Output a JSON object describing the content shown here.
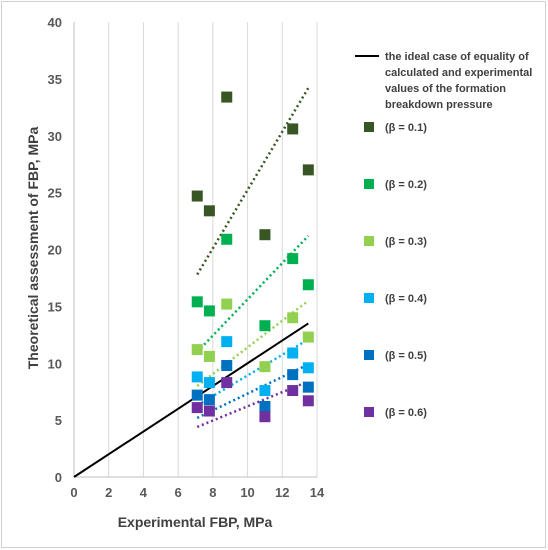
{
  "chart_data": {
    "type": "scatter",
    "title": "",
    "xlabel": "Experimental FBP, MPa",
    "ylabel": "Theoretical assessment of FBP, MPa",
    "xlim": [
      0,
      14
    ],
    "ylim": [
      0,
      40
    ],
    "xticks": [
      0,
      2,
      4,
      6,
      8,
      10,
      12,
      14
    ],
    "yticks": [
      0,
      5,
      10,
      15,
      20,
      25,
      30,
      35,
      40
    ],
    "grid": "vertical",
    "legend_position": "right",
    "ideal_line": {
      "name": "the ideal case of equality of calculated and experimental values of the formation breakdown pressure",
      "name_lines": [
        "the ideal case of equality of",
        "calculated and experimental",
        "values of the formation",
        "breakdown pressure"
      ],
      "points": [
        [
          0,
          0
        ],
        [
          13.5,
          13.5
        ]
      ],
      "color": "#000000"
    },
    "x": [
      7.1,
      7.8,
      8.8,
      11.0,
      12.6,
      13.5
    ],
    "series": [
      {
        "name": "(β = 0.1)",
        "color": "#375623",
        "values": [
          24.7,
          23.4,
          33.4,
          21.3,
          30.6,
          27.0
        ],
        "trend": [
          [
            7.1,
            17.8
          ],
          [
            13.5,
            34.2
          ]
        ]
      },
      {
        "name": "(β = 0.2)",
        "color": "#00B050",
        "values": [
          15.4,
          14.6,
          20.9,
          13.3,
          19.2,
          16.9
        ],
        "trend": [
          [
            7.1,
            11.0
          ],
          [
            13.5,
            21.2
          ]
        ]
      },
      {
        "name": "(β = 0.3)",
        "color": "#92D050",
        "values": [
          11.2,
          10.6,
          15.2,
          9.7,
          14.0,
          12.3
        ],
        "trend": [
          [
            7.1,
            8.0
          ],
          [
            13.5,
            15.5
          ]
        ]
      },
      {
        "name": "(β = 0.4)",
        "color": "#00B0F0",
        "values": [
          8.8,
          8.3,
          11.9,
          7.6,
          10.9,
          9.6
        ],
        "trend": [
          [
            7.1,
            6.3
          ],
          [
            13.5,
            12.1
          ]
        ]
      },
      {
        "name": "(β = 0.5)",
        "color": "#0070C0",
        "values": [
          7.2,
          6.8,
          9.8,
          6.2,
          9.0,
          7.9
        ],
        "trend": [
          [
            7.1,
            5.2
          ],
          [
            13.5,
            9.9
          ]
        ]
      },
      {
        "name": "(β = 0.6)",
        "color": "#7030A0",
        "values": [
          6.1,
          5.8,
          8.3,
          5.3,
          7.6,
          6.7
        ],
        "trend": [
          [
            7.1,
            4.4
          ],
          [
            13.5,
            8.4
          ]
        ]
      }
    ]
  }
}
